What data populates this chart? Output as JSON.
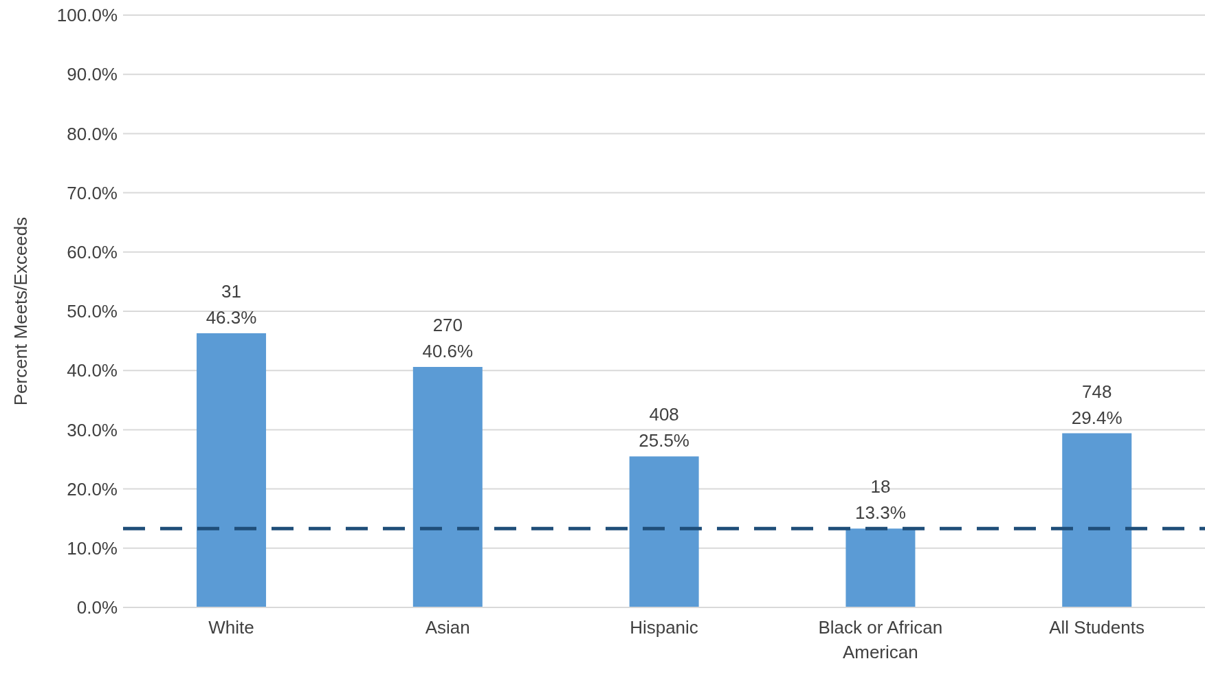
{
  "chart_data": {
    "type": "bar",
    "ylabel": "Percent Meets/Exceeds",
    "categories": [
      "White",
      "Asian",
      "Hispanic",
      "Black or African American",
      "All Students"
    ],
    "values": [
      46.3,
      40.6,
      25.5,
      13.3,
      29.4
    ],
    "value_labels": [
      "31\n46.3%",
      "270\n40.6%",
      "408\n25.5%",
      "18\n13.3%",
      "748\n29.4%"
    ],
    "color": "#5b9bd5",
    "ylim": [
      0,
      100
    ],
    "yticks": [
      {
        "value": 0,
        "label": "0.0%"
      },
      {
        "value": 10,
        "label": "10.0%"
      },
      {
        "value": 20,
        "label": "20.0%"
      },
      {
        "value": 30,
        "label": "30.0%"
      },
      {
        "value": 40,
        "label": "40.0%"
      },
      {
        "value": 50,
        "label": "50.0%"
      },
      {
        "value": 60,
        "label": "60.0%"
      },
      {
        "value": 70,
        "label": "70.0%"
      },
      {
        "value": 80,
        "label": "80.0%"
      },
      {
        "value": 90,
        "label": "90.0%"
      },
      {
        "value": 100,
        "label": "100.0%"
      }
    ],
    "grid": "y",
    "legend": false,
    "ref_lines": [
      {
        "axis": "y",
        "value": 13.3,
        "color": "#1f4e79",
        "line_style": "dashed"
      }
    ]
  }
}
